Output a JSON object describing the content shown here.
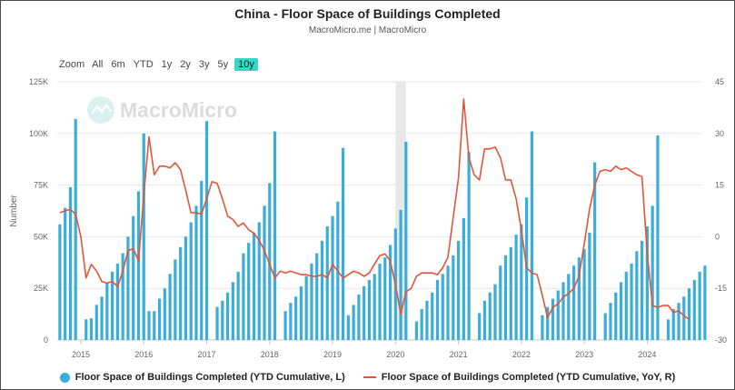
{
  "title": "China - Floor Space of Buildings Completed",
  "subtitle": "MacroMicro.me | MacroMicro",
  "watermark": "MacroMicro",
  "zoom": {
    "label": "Zoom",
    "buttons": [
      "All",
      "6m",
      "YTD",
      "1y",
      "2y",
      "3y",
      "5y",
      "10y"
    ],
    "active": "10y"
  },
  "colors": {
    "bar": "#3aaed8",
    "line": "#e2553a",
    "recession": "#e8e8e8",
    "zoom_active": "#38d6c4"
  },
  "legend": {
    "left": "Floor Space of Buildings Completed (YTD Cumulative, L)",
    "right": "Floor Space of Buildings Completed (YTD Cumulative, YoY, R)"
  },
  "chart_data": {
    "type": "bar+line",
    "ylabel": "Number",
    "x_ticks": [
      "2015",
      "2016",
      "2017",
      "2018",
      "2019",
      "2020",
      "2021",
      "2022",
      "2023",
      "2024"
    ],
    "y_left": {
      "range": [
        0,
        125000
      ],
      "ticks": [
        "0",
        "25K",
        "50K",
        "75K",
        "100K",
        "125K"
      ]
    },
    "y_right": {
      "range": [
        -30,
        45
      ],
      "ticks": [
        "-30",
        "-15",
        "0",
        "15",
        "30",
        "45"
      ]
    },
    "shaded_period": [
      "2020-01",
      "2020-03"
    ],
    "series": [
      {
        "name": "Floor Space of Buildings Completed (YTD Cumulative, L)",
        "type": "bar",
        "axis": "left",
        "points": [
          [
            "2014-09",
            56000
          ],
          [
            "2014-10",
            64000
          ],
          [
            "2014-11",
            74000
          ],
          [
            "2014-12",
            107000
          ],
          [
            "2015-02",
            10000
          ],
          [
            "2015-03",
            10500
          ],
          [
            "2015-04",
            17000
          ],
          [
            "2015-05",
            21000
          ],
          [
            "2015-06",
            28000
          ],
          [
            "2015-07",
            33000
          ],
          [
            "2015-08",
            37000
          ],
          [
            "2015-09",
            42000
          ],
          [
            "2015-10",
            50000
          ],
          [
            "2015-11",
            60000
          ],
          [
            "2015-12",
            72000
          ],
          [
            "2016-01",
            100000
          ],
          [
            "2016-02",
            14000
          ],
          [
            "2016-03",
            14000
          ],
          [
            "2016-04",
            20000
          ],
          [
            "2016-05",
            25000
          ],
          [
            "2016-06",
            32000
          ],
          [
            "2016-07",
            39000
          ],
          [
            "2016-08",
            45000
          ],
          [
            "2016-09",
            50000
          ],
          [
            "2016-10",
            57000
          ],
          [
            "2016-11",
            65000
          ],
          [
            "2016-12",
            77000
          ],
          [
            "2017-01",
            106000
          ],
          [
            "2017-03",
            16000
          ],
          [
            "2017-04",
            19000
          ],
          [
            "2017-05",
            23000
          ],
          [
            "2017-06",
            28000
          ],
          [
            "2017-07",
            33000
          ],
          [
            "2017-08",
            42000
          ],
          [
            "2017-09",
            47000
          ],
          [
            "2017-10",
            52000
          ],
          [
            "2017-11",
            57000
          ],
          [
            "2017-12",
            65000
          ],
          [
            "2018-01",
            76000
          ],
          [
            "2018-02",
            101000
          ],
          [
            "2018-04",
            14000
          ],
          [
            "2018-05",
            18000
          ],
          [
            "2018-06",
            21000
          ],
          [
            "2018-07",
            26000
          ],
          [
            "2018-08",
            31000
          ],
          [
            "2018-09",
            37000
          ],
          [
            "2018-10",
            42000
          ],
          [
            "2018-11",
            48000
          ],
          [
            "2018-12",
            55000
          ],
          [
            "2019-01",
            60000
          ],
          [
            "2019-02",
            67000
          ],
          [
            "2019-03",
            93000
          ],
          [
            "2019-04",
            12000
          ],
          [
            "2019-05",
            17000
          ],
          [
            "2019-06",
            22000
          ],
          [
            "2019-07",
            26000
          ],
          [
            "2019-08",
            29000
          ],
          [
            "2019-09",
            32000
          ],
          [
            "2019-10",
            37000
          ],
          [
            "2019-11",
            40000
          ],
          [
            "2019-12",
            46000
          ],
          [
            "2020-01",
            54000
          ],
          [
            "2020-02",
            63000
          ],
          [
            "2020-03",
            96000
          ],
          [
            "2020-05",
            9000
          ],
          [
            "2020-06",
            15000
          ],
          [
            "2020-07",
            19000
          ],
          [
            "2020-08",
            23000
          ],
          [
            "2020-09",
            29000
          ],
          [
            "2020-10",
            32000
          ],
          [
            "2020-11",
            36000
          ],
          [
            "2020-12",
            41000
          ],
          [
            "2021-01",
            48000
          ],
          [
            "2021-02",
            59000
          ],
          [
            "2021-03",
            91000
          ],
          [
            "2021-05",
            13000
          ],
          [
            "2021-06",
            19000
          ],
          [
            "2021-07",
            23000
          ],
          [
            "2021-08",
            27000
          ],
          [
            "2021-09",
            36000
          ],
          [
            "2021-10",
            41000
          ],
          [
            "2021-11",
            45000
          ],
          [
            "2021-12",
            51000
          ],
          [
            "2022-01",
            56000
          ],
          [
            "2022-02",
            69000
          ],
          [
            "2022-03",
            101000
          ],
          [
            "2022-05",
            12000
          ],
          [
            "2022-06",
            16000
          ],
          [
            "2022-07",
            20000
          ],
          [
            "2022-08",
            24000
          ],
          [
            "2022-09",
            28000
          ],
          [
            "2022-10",
            32000
          ],
          [
            "2022-11",
            36000
          ],
          [
            "2022-12",
            40000
          ],
          [
            "2023-01",
            44000
          ],
          [
            "2023-02",
            52000
          ],
          [
            "2023-03",
            86000
          ],
          [
            "2023-05",
            13000
          ],
          [
            "2023-06",
            18000
          ],
          [
            "2023-07",
            23000
          ],
          [
            "2023-08",
            28000
          ],
          [
            "2023-09",
            33000
          ],
          [
            "2023-10",
            37000
          ],
          [
            "2023-11",
            43000
          ],
          [
            "2023-12",
            48000
          ],
          [
            "2024-01",
            55000
          ],
          [
            "2024-02",
            65000
          ],
          [
            "2024-03",
            99000
          ],
          [
            "2024-05",
            10000
          ],
          [
            "2024-06",
            15000
          ],
          [
            "2024-07",
            18000
          ],
          [
            "2024-08",
            21000
          ],
          [
            "2024-09",
            25000
          ],
          [
            "2024-10",
            29000
          ],
          [
            "2024-11",
            33000
          ],
          [
            "2024-12",
            36000
          ]
        ]
      },
      {
        "name": "Floor Space of Buildings Completed (YTD Cumulative, YoY, R)",
        "type": "line",
        "axis": "right",
        "points": [
          [
            "2014-09",
            7
          ],
          [
            "2014-10",
            7.5
          ],
          [
            "2014-11",
            8
          ],
          [
            "2014-12",
            6.5
          ],
          [
            "2015-01",
            0
          ],
          [
            "2015-02",
            -12
          ],
          [
            "2015-03",
            -8
          ],
          [
            "2015-04",
            -10
          ],
          [
            "2015-05",
            -13
          ],
          [
            "2015-06",
            -13.5
          ],
          [
            "2015-07",
            -13
          ],
          [
            "2015-08",
            -14.5
          ],
          [
            "2015-09",
            -10
          ],
          [
            "2015-10",
            -4
          ],
          [
            "2015-11",
            -3.5
          ],
          [
            "2015-12",
            -7
          ],
          [
            "2016-01",
            12
          ],
          [
            "2016-02",
            29
          ],
          [
            "2016-03",
            18
          ],
          [
            "2016-04",
            20.5
          ],
          [
            "2016-05",
            20.5
          ],
          [
            "2016-06",
            20
          ],
          [
            "2016-07",
            21.5
          ],
          [
            "2016-08",
            19.5
          ],
          [
            "2016-09",
            13.5
          ],
          [
            "2016-10",
            7
          ],
          [
            "2016-11",
            7
          ],
          [
            "2016-12",
            6.5
          ],
          [
            "2017-01",
            11
          ],
          [
            "2017-02",
            16
          ],
          [
            "2017-03",
            15.5
          ],
          [
            "2017-04",
            11
          ],
          [
            "2017-05",
            6
          ],
          [
            "2017-06",
            5
          ],
          [
            "2017-07",
            3
          ],
          [
            "2017-08",
            4
          ],
          [
            "2017-09",
            2
          ],
          [
            "2017-10",
            1
          ],
          [
            "2017-11",
            -1
          ],
          [
            "2017-12",
            -4
          ],
          [
            "2018-01",
            -8
          ],
          [
            "2018-02",
            -12
          ],
          [
            "2018-03",
            -10
          ],
          [
            "2018-04",
            -10.5
          ],
          [
            "2018-05",
            -10
          ],
          [
            "2018-06",
            -10.5
          ],
          [
            "2018-07",
            -11
          ],
          [
            "2018-08",
            -11
          ],
          [
            "2018-09",
            -11.5
          ],
          [
            "2018-10",
            -11.5
          ],
          [
            "2018-11",
            -11
          ],
          [
            "2018-12",
            -12
          ],
          [
            "2019-01",
            -8
          ],
          [
            "2019-02",
            -10
          ],
          [
            "2019-03",
            -12
          ],
          [
            "2019-04",
            -11
          ],
          [
            "2019-05",
            -10
          ],
          [
            "2019-06",
            -10.5
          ],
          [
            "2019-07",
            -11.5
          ],
          [
            "2019-08",
            -10.5
          ],
          [
            "2019-09",
            -8
          ],
          [
            "2019-10",
            -5.5
          ],
          [
            "2019-11",
            -5
          ],
          [
            "2019-12",
            -7
          ],
          [
            "2020-01",
            -14
          ],
          [
            "2020-02",
            -22.5
          ],
          [
            "2020-03",
            -16
          ],
          [
            "2020-04",
            -15
          ],
          [
            "2020-05",
            -11.5
          ],
          [
            "2020-06",
            -10.5
          ],
          [
            "2020-07",
            -10.5
          ],
          [
            "2020-08",
            -10.5
          ],
          [
            "2020-09",
            -11
          ],
          [
            "2020-10",
            -9
          ],
          [
            "2020-11",
            -6
          ],
          [
            "2021-01",
            17
          ],
          [
            "2021-02",
            40
          ],
          [
            "2021-03",
            23
          ],
          [
            "2021-04",
            18
          ],
          [
            "2021-05",
            16.5
          ],
          [
            "2021-06",
            25.5
          ],
          [
            "2021-07",
            25.5
          ],
          [
            "2021-08",
            26
          ],
          [
            "2021-09",
            23
          ],
          [
            "2021-10",
            16.5
          ],
          [
            "2021-11",
            16.5
          ],
          [
            "2021-12",
            11
          ],
          [
            "2022-01",
            2
          ],
          [
            "2022-02",
            -9
          ],
          [
            "2022-03",
            -10.5
          ],
          [
            "2022-04",
            -11
          ],
          [
            "2022-05",
            -17
          ],
          [
            "2022-06",
            -23.5
          ],
          [
            "2022-07",
            -20.5
          ],
          [
            "2022-08",
            -19.5
          ],
          [
            "2022-09",
            -17.5
          ],
          [
            "2022-10",
            -16.5
          ],
          [
            "2022-11",
            -15
          ],
          [
            "2022-12",
            -11.5
          ],
          [
            "2023-01",
            -2
          ],
          [
            "2023-02",
            8
          ],
          [
            "2023-03",
            15
          ],
          [
            "2023-04",
            19
          ],
          [
            "2023-05",
            19.5
          ],
          [
            "2023-06",
            19
          ],
          [
            "2023-07",
            20.5
          ],
          [
            "2023-08",
            19.5
          ],
          [
            "2023-09",
            20
          ],
          [
            "2023-10",
            19
          ],
          [
            "2023-11",
            18
          ],
          [
            "2023-12",
            17.5
          ],
          [
            "2024-01",
            -5
          ],
          [
            "2024-02",
            -20
          ],
          [
            "2024-03",
            -20.5
          ],
          [
            "2024-04",
            -20
          ],
          [
            "2024-05",
            -20
          ],
          [
            "2024-06",
            -22
          ],
          [
            "2024-07",
            -21.5
          ],
          [
            "2024-08",
            -23
          ],
          [
            "2024-09",
            -24
          ]
        ]
      }
    ]
  }
}
